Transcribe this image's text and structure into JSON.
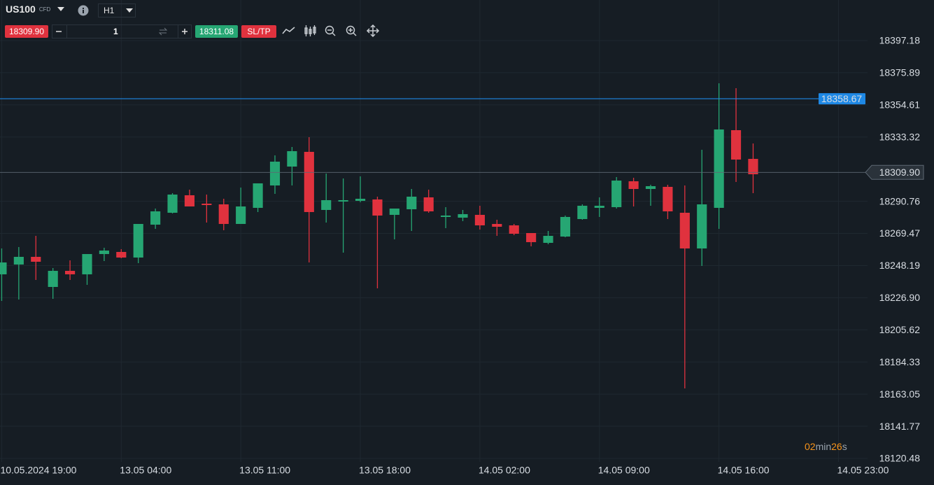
{
  "toolbar": {
    "symbol": "US100",
    "symbol_type": "CFD",
    "timeframe": "H1",
    "sell_price": "18309.90",
    "quantity": "1",
    "buy_price": "18311.08",
    "sl_tp": "SL/TP"
  },
  "chart_data": {
    "type": "candlestick",
    "up_color": "#26a673",
    "down_color": "#e0323e",
    "open": [
      18242.38,
      18248.87,
      18253.96,
      18234.03,
      18244.69,
      18242.38,
      18255.82,
      18257.21,
      18253.5,
      18275.28,
      18283.16,
      18294.75,
      18289.19,
      18288.72,
      18275.75,
      18286.41,
      18301.24,
      18313.75,
      18323.49,
      18285.02,
      18290.58,
      18291.04,
      18291.97,
      18281.77,
      18285.48,
      18293.36,
      18280.38,
      18279.92,
      18281.77,
      18275.75,
      18274.82,
      18269.72,
      18263.23,
      18267.4,
      18278.99,
      18286.41,
      18286.87,
      18304.02,
      18298.92,
      18300.31,
      18283.16,
      18259.52,
      18286.41,
      18337.85,
      18318.85
    ],
    "high": [
      18259.52,
      18260.46,
      18267.87,
      18246.55,
      18251.65,
      18255.82,
      18259.99,
      18259.06,
      18275.75,
      18285.94,
      18296.14,
      18298.46,
      18295.21,
      18292.43,
      18299.85,
      18302.63,
      18321.17,
      18326.73,
      18333.22,
      18309.12,
      18305.87,
      18307.26,
      18293.82,
      18285.94,
      18298.92,
      18298.46,
      18286.87,
      18285.02,
      18287.8,
      18278.53,
      18275.75,
      18269.72,
      18271.11,
      18281.31,
      18288.72,
      18293.36,
      18306.8,
      18306.34,
      18301.7,
      18301.7,
      18301.24,
      18324.88,
      18368.91,
      18365.66,
      18329.05
    ],
    "low": [
      18224.76,
      18225.69,
      18238.67,
      18226.15,
      18238.67,
      18235.42,
      18251.18,
      18253.04,
      18249.79,
      18272.5,
      18282.7,
      18287.33,
      18276.67,
      18271.58,
      18275.75,
      18283.63,
      18295.68,
      18301.24,
      18250.25,
      18276.67,
      18256.74,
      18290.11,
      18233.11,
      18265.55,
      18271.11,
      18283.16,
      18272.97,
      18277.6,
      18272.04,
      18267.87,
      18268.33,
      18260.92,
      18262.31,
      18266.94,
      18278.53,
      18280.38,
      18285.94,
      18287.33,
      18287.8,
      18278.99,
      18166.83,
      18247.94,
      18272.5,
      18303.56,
      18296.14
    ],
    "close": [
      18250.25,
      18253.96,
      18250.72,
      18244.69,
      18242.38,
      18255.82,
      18258.13,
      18253.5,
      18275.75,
      18284.09,
      18295.21,
      18287.33,
      18288.26,
      18275.75,
      18287.33,
      18302.63,
      18317.0,
      18323.95,
      18283.63,
      18291.5,
      18291.5,
      18292.43,
      18281.31,
      18285.94,
      18293.82,
      18284.09,
      18281.31,
      18282.24,
      18274.82,
      18273.89,
      18269.26,
      18263.7,
      18267.87,
      18280.38,
      18287.8,
      18287.8,
      18304.48,
      18298.92,
      18300.77,
      18284.09,
      18259.52,
      18288.72,
      18338.32,
      18318.39,
      18308.65
    ],
    "xlim": [
      -0.1,
      50.7
    ],
    "xticks": [
      {
        "value": 0,
        "label": "10.05.2024 19:00"
      },
      {
        "value": 7,
        "label": "13.05 04:00"
      },
      {
        "value": 14,
        "label": "13.05 11:00"
      },
      {
        "value": 21,
        "label": "13.05 18:00"
      },
      {
        "value": 28,
        "label": "14.05 02:00"
      },
      {
        "value": 35,
        "label": "14.05 09:00"
      },
      {
        "value": 42,
        "label": "14.05 16:00"
      },
      {
        "value": 49,
        "label": "14.05 23:00"
      }
    ],
    "ylim": [
      18118.16,
      18424.06
    ],
    "yticks": [
      18397.18,
      18375.89,
      18354.61,
      18333.32,
      18290.76,
      18269.47,
      18248.19,
      {
        "value": 18226.9,
        "label": "18226.90"
      },
      18205.62,
      18184.33,
      18163.05,
      18141.77,
      18120.48
    ],
    "grid": true,
    "price_lines": [
      {
        "value": 18358.67,
        "color": "#1e88e5"
      },
      {
        "value": 18309.9,
        "label": "18309.90",
        "color": "#5d6873"
      }
    ],
    "countdown": {
      "minutes": "02",
      "minutes_unit": "min",
      "seconds": "26",
      "seconds_unit": "s"
    }
  }
}
